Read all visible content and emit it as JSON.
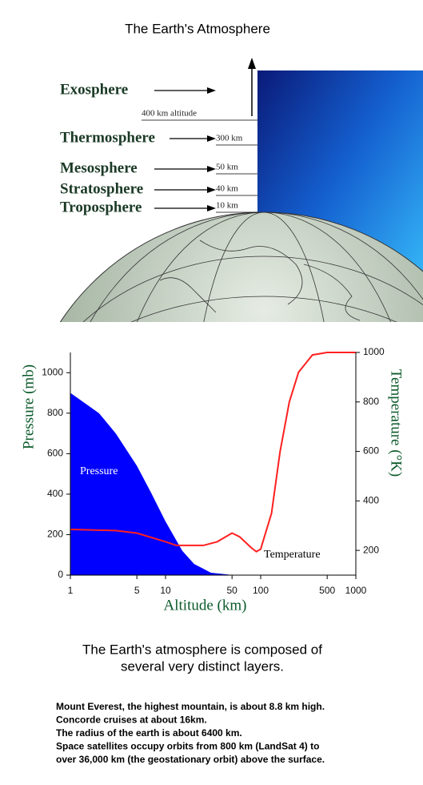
{
  "title": "The Earth's Atmosphere",
  "diagram": {
    "layers": [
      "Exosphere",
      "Thermosphere",
      "Mesosphere",
      "Stratosphere",
      "Troposphere"
    ],
    "altitudes": [
      "400 km altitude",
      "300 km",
      "50 km",
      "40 km",
      "10 km"
    ]
  },
  "chart_data": {
    "type": "line",
    "xlabel": "Altitude (km)",
    "ylabel": "Pressure (mb)",
    "y2label": "Temperature (°K)",
    "xscale": "log",
    "xlim": [
      1,
      1000
    ],
    "xticks": [
      1,
      5,
      10,
      50,
      100,
      500,
      1000
    ],
    "ylim": [
      0,
      1100
    ],
    "yticks": [
      0,
      200,
      400,
      600,
      800,
      1000
    ],
    "y2lim": [
      100,
      1000
    ],
    "y2ticks": [
      200,
      400,
      600,
      800,
      1000
    ],
    "series": [
      {
        "name": "Pressure",
        "color": "#0000ff",
        "fill": true,
        "x": [
          1,
          2,
          3,
          5,
          7,
          10,
          15,
          20,
          30,
          50
        ],
        "values": [
          900,
          800,
          700,
          540,
          410,
          265,
          120,
          55,
          12,
          1
        ]
      },
      {
        "name": "Temperature",
        "color": "#ff2020",
        "axis": "y2",
        "x": [
          1,
          3,
          5,
          10,
          13,
          25,
          35,
          50,
          60,
          80,
          90,
          100,
          130,
          160,
          200,
          250,
          350,
          500,
          1000
        ],
        "values": [
          285,
          280,
          270,
          235,
          220,
          220,
          235,
          270,
          255,
          210,
          195,
          205,
          350,
          600,
          800,
          920,
          990,
          1000,
          1000
        ]
      }
    ]
  },
  "caption": [
    "The Earth's atmosphere is composed of",
    "several very distinct layers."
  ],
  "notes": [
    "Mount Everest, the highest mountain, is about 8.8 km high.",
    "Concorde cruises at about 16km.",
    "The radius of the earth is about 6400 km.",
    "Space satellites occupy orbits from 800 km (LandSat 4) to",
    "over 36,000 km (the geostationary orbit) above the surface."
  ]
}
